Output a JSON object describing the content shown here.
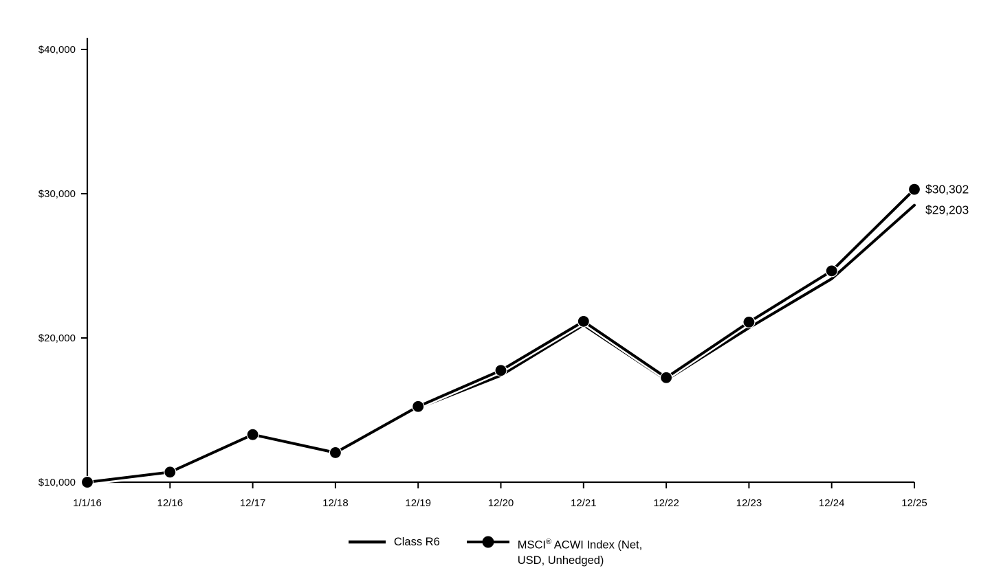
{
  "chart_data": {
    "type": "line",
    "title": "",
    "xlabel": "",
    "ylabel": "",
    "x_tick_labels": [
      "1/1/16",
      "12/16",
      "12/17",
      "12/18",
      "12/19",
      "12/20",
      "12/21",
      "12/22",
      "12/23",
      "12/24",
      "12/25"
    ],
    "y_ticks": [
      10000,
      20000,
      30000,
      40000
    ],
    "y_tick_labels": [
      "$10,000",
      "$20,000",
      "$30,000",
      "$40,000"
    ],
    "ylim": [
      10000,
      41000
    ],
    "grid": false,
    "legend_position": "bottom-center",
    "series": [
      {
        "name": "Class R6",
        "marker": false,
        "color": "#000000",
        "values": [
          10000,
          10650,
          13250,
          12000,
          15150,
          17400,
          20900,
          17100,
          20700,
          24100,
          29203
        ],
        "end_label": "$29,203"
      },
      {
        "name": "MSCI ACWI Index (Net, USD, Unhedged)",
        "marker": true,
        "color": "#000000",
        "values": [
          10000,
          10700,
          13300,
          12050,
          15250,
          17750,
          21150,
          17250,
          21100,
          24650,
          30302
        ],
        "end_label": "$30,302"
      }
    ]
  },
  "legend": {
    "class_r6_label": "Class R6",
    "msci_prefix": "MSCI",
    "msci_reg": "®",
    "msci_line1_rest": " ACWI Index (Net,",
    "msci_line2": "USD, Unhedged)"
  },
  "colors": {
    "line": "#000000",
    "background": "#ffffff"
  }
}
